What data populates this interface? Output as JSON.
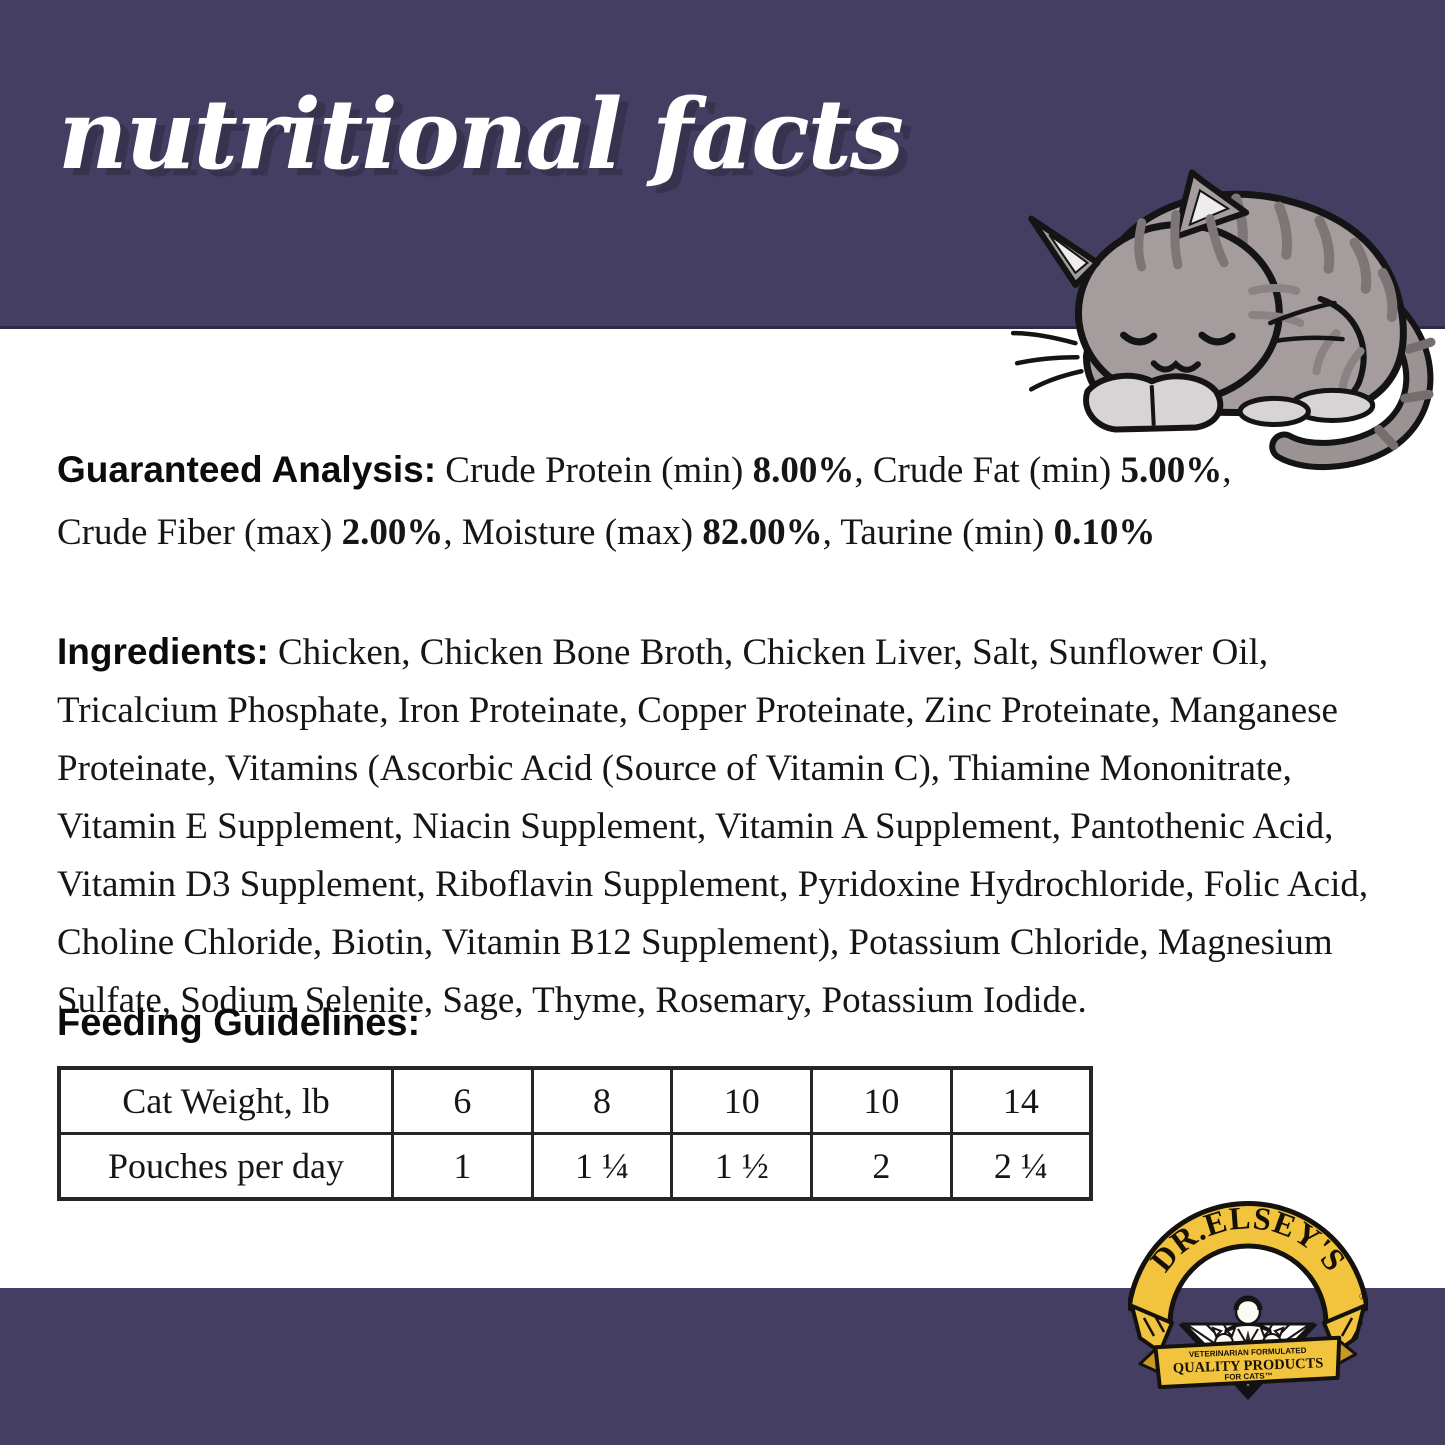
{
  "colors": {
    "band_purple": "#443e63",
    "logo_gold": "#f2c43d",
    "title_shadow": "#37324d",
    "cat_gray": "#a59c9e",
    "text": "#161616"
  },
  "header": {
    "title": "nutritional facts"
  },
  "illustrations": {
    "cat": "sleeping-tabby-cat-illustration",
    "logo": "dr-elseys-brand-crest"
  },
  "guaranteed_analysis": {
    "label": "Guaranteed Analysis:",
    "segments": [
      {
        "t": " Crude Protein (min) ",
        "b": false
      },
      {
        "t": "8.00%",
        "b": true
      },
      {
        "t": ", Crude Fat (min) ",
        "b": false
      },
      {
        "t": "5.00%",
        "b": true
      },
      {
        "t": ", Crude Fiber (max) ",
        "b": false
      },
      {
        "t": "2.00%",
        "b": true
      },
      {
        "t": ", Moisture (max) ",
        "b": false
      },
      {
        "t": "82.00%",
        "b": true
      },
      {
        "t": ", Taurine (min) ",
        "b": false
      },
      {
        "t": "0.10%",
        "b": true
      }
    ]
  },
  "ingredients": {
    "label": "Ingredients:",
    "text": " Chicken, Chicken Bone Broth, Chicken Liver, Salt, Sunflower Oil, Tricalcium Phosphate, Iron Proteinate, Copper Proteinate, Zinc Proteinate, Manganese Proteinate, Vitamins (Ascorbic Acid (Source of Vitamin C), Thiamine Mononitrate, Vitamin E Supplement, Niacin Supplement, Vitamin A Supplement, Pantothenic Acid, Vitamin D3 Supplement, Riboflavin Supplement, Pyridoxine Hydrochloride, Folic Acid, Choline Chloride, Biotin, Vitamin B12 Supplement), Potassium Chloride, Magnesium Sulfate, Sodium Selenite, Sage, Thyme, Rosemary, Potassium Iodide."
  },
  "feeding_guidelines": {
    "label": "Feeding Guidelines:",
    "table": {
      "rows": [
        [
          "Cat Weight, lb",
          "6",
          "8",
          "10",
          "10",
          "14"
        ],
        [
          "Pouches per day",
          "1",
          "1 ¼",
          "1 ½",
          "2",
          "2 ¼"
        ]
      ]
    }
  },
  "logo": {
    "brand": "DR.ELSEY'S",
    "registered": "®",
    "tagline_small": "VETERINARIAN FORMULATED",
    "tagline_main": "QUALITY PRODUCTS",
    "tagline_sub": "FOR CATS™"
  }
}
